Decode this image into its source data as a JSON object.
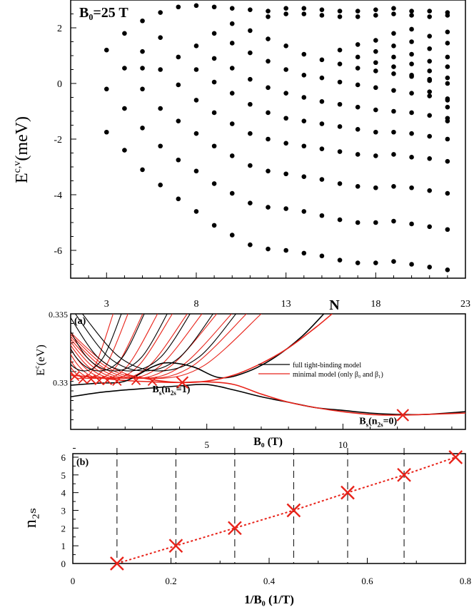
{
  "chart_data": [
    {
      "type": "scatter",
      "panel": "top",
      "title": "B₀=25 T",
      "xlabel": "N",
      "ylabel": "E^{c,v} (meV)",
      "xlim": [
        1,
        23
      ],
      "ylim": [
        -7,
        3
      ],
      "xticks": [
        3,
        8,
        13,
        18,
        23
      ],
      "yticks": [
        -6,
        -4,
        -2,
        0,
        2
      ],
      "series": [
        {
          "name": "band1",
          "x": [
            3,
            4,
            5,
            6,
            7,
            8,
            9,
            10,
            11,
            12,
            13,
            14,
            15,
            16,
            17,
            18,
            19,
            20,
            21,
            22
          ],
          "y": [
            -1.75,
            -2.4,
            -3.1,
            -3.65,
            -4.15,
            -4.6,
            -5.1,
            -5.45,
            -5.8,
            -5.95,
            -6.0,
            -6.1,
            -6.2,
            -6.35,
            -6.45,
            -6.45,
            -6.4,
            -6.5,
            -6.6,
            -6.7
          ]
        },
        {
          "name": "band2",
          "x": [
            4,
            5,
            6,
            7,
            8,
            9,
            10,
            11,
            12,
            13,
            14,
            15,
            16,
            17,
            18,
            19,
            20,
            21,
            22
          ],
          "y": [
            -0.9,
            -1.6,
            -2.25,
            -2.75,
            -3.15,
            -3.6,
            -3.95,
            -4.3,
            -4.45,
            -4.5,
            -4.6,
            -4.75,
            -4.9,
            -5.0,
            -5.0,
            -4.95,
            -5.05,
            -5.15,
            -5.25
          ]
        },
        {
          "name": "band3",
          "x": [
            5,
            6,
            7,
            8,
            9,
            10,
            11,
            12,
            13,
            14,
            15,
            16,
            17,
            18,
            19,
            20,
            21,
            22
          ],
          "y": [
            -0.2,
            -0.9,
            -1.35,
            -1.8,
            -2.25,
            -2.6,
            -2.95,
            -3.15,
            -3.25,
            -3.35,
            -3.45,
            -3.6,
            -3.7,
            -3.75,
            -3.7,
            -3.75,
            -3.85,
            -3.95
          ]
        },
        {
          "name": "band4",
          "x": [
            6,
            7,
            8,
            9,
            10,
            11,
            12,
            13,
            14,
            15,
            16,
            17,
            18,
            19,
            20,
            21,
            22
          ],
          "y": [
            0.5,
            -0.05,
            -0.6,
            -1.05,
            -1.45,
            -1.8,
            -2.0,
            -2.15,
            -2.25,
            -2.35,
            -2.45,
            -2.55,
            -2.6,
            -2.55,
            -2.65,
            -2.7,
            -2.8
          ]
        },
        {
          "name": "band5",
          "x": [
            7,
            8,
            9,
            10,
            11,
            12,
            13,
            14,
            15,
            16,
            17,
            18,
            19,
            20,
            21,
            22
          ],
          "y": [
            0.95,
            0.5,
            0.05,
            -0.35,
            -0.75,
            -1.05,
            -1.25,
            -1.35,
            -1.45,
            -1.55,
            -1.65,
            -1.75,
            -1.75,
            -1.8,
            -1.9,
            -2.0
          ]
        },
        {
          "name": "band6",
          "x": [
            8,
            9,
            10,
            11,
            12,
            13,
            14,
            15,
            16,
            17,
            18,
            19,
            20,
            21,
            22
          ],
          "y": [
            1.35,
            0.9,
            0.55,
            0.15,
            -0.15,
            -0.35,
            -0.5,
            -0.65,
            -0.75,
            -0.85,
            -0.95,
            -1.0,
            -1.05,
            -1.15,
            -1.25
          ]
        },
        {
          "name": "band7",
          "x": [
            9,
            10,
            11,
            12,
            13,
            14,
            15,
            16,
            17,
            18,
            19,
            20,
            21,
            22
          ],
          "y": [
            1.8,
            1.45,
            1.1,
            0.8,
            0.5,
            0.3,
            0.2,
            0.05,
            -0.05,
            -0.15,
            -0.25,
            -0.35,
            -0.45,
            -0.55
          ]
        },
        {
          "name": "band8",
          "x": [
            10,
            11,
            12,
            13,
            14,
            15,
            16,
            17,
            18,
            19,
            20,
            21,
            22
          ],
          "y": [
            2.15,
            1.9,
            1.6,
            1.35,
            1.05,
            0.85,
            0.7,
            0.55,
            0.45,
            0.35,
            0.25,
            0.1,
            0.0
          ]
        },
        {
          "name": "upper1",
          "x": [
            3,
            4,
            5,
            6,
            7,
            8
          ],
          "y": [
            1.2,
            1.8,
            2.25,
            2.55,
            2.75,
            2.8
          ]
        },
        {
          "name": "upper2",
          "x": [
            4,
            5,
            6
          ],
          "y": [
            0.55,
            1.15,
            1.65
          ]
        },
        {
          "name": "upper3",
          "x": [
            3,
            5
          ],
          "y": [
            -0.2,
            0.55
          ]
        },
        {
          "name": "top_row",
          "x": [
            9,
            10,
            11,
            12,
            13,
            14,
            15,
            16,
            17,
            18,
            19,
            20,
            21,
            22
          ],
          "y": [
            2.75,
            2.7,
            2.65,
            2.6,
            2.7,
            2.7,
            2.65,
            2.6,
            2.6,
            2.65,
            2.7,
            2.6,
            2.6,
            2.55
          ]
        },
        {
          "name": "top_row2",
          "x": [
            12,
            13,
            14,
            15,
            16,
            17,
            18,
            19,
            20,
            21,
            22
          ],
          "y": [
            2.4,
            2.5,
            2.5,
            2.45,
            2.4,
            2.4,
            2.45,
            2.5,
            2.45,
            2.4,
            2.45
          ]
        },
        {
          "name": "upper_stack",
          "x": [
            16,
            17,
            18,
            19,
            20,
            21,
            22,
            17,
            18,
            19,
            20,
            21,
            22,
            18,
            19,
            20,
            21,
            22,
            19,
            20,
            21,
            22,
            20,
            21,
            22,
            21,
            22,
            22,
            22
          ],
          "y": [
            1.2,
            1.4,
            1.55,
            1.8,
            1.95,
            1.7,
            1.85,
            0.95,
            1.15,
            1.35,
            1.5,
            1.25,
            1.45,
            0.75,
            0.95,
            1.05,
            0.8,
            0.95,
            0.6,
            0.7,
            0.45,
            0.6,
            0.3,
            0.15,
            0.2,
            -0.3,
            -0.6,
            -0.85,
            -1.35
          ]
        }
      ]
    },
    {
      "type": "line",
      "panel": "a",
      "panel_label": "(a)",
      "xlabel": "B₀ (T)",
      "ylabel": "E^c (eV)",
      "xlim": [
        0,
        14.5
      ],
      "ylim": [
        0.3265,
        0.335
      ],
      "xticks": [
        5,
        10
      ],
      "ytick_labels": [
        "0.33",
        "0.335"
      ],
      "legend": [
        "full tight-binding model",
        "minimal model (only β₀ and β₁)"
      ],
      "legend_colors": [
        "#000000",
        "#e8231a"
      ],
      "annotations": [
        "B_s(n_2s=1)",
        "B_s(n_2s=0)"
      ],
      "crossings": [
        {
          "x": 4.1,
          "y": 0.32995
        },
        {
          "x": 12.2,
          "y": 0.32755
        }
      ],
      "series": [
        {
          "name": "full tight-binding model, n=0",
          "color": "#000000",
          "x": [
            0,
            1,
            2,
            3,
            4,
            5,
            6,
            7,
            8,
            9,
            10,
            11,
            12,
            13,
            14.5
          ],
          "y": [
            0.3289,
            0.3292,
            0.3294,
            0.32955,
            0.3297,
            0.3298,
            0.3294,
            0.3289,
            0.3285,
            0.3281,
            0.3279,
            0.3277,
            0.3276,
            0.3276,
            0.3278
          ]
        },
        {
          "name": "minimal model, n=0",
          "color": "#e8231a",
          "x": [
            0,
            1,
            2,
            3,
            4,
            5,
            6,
            7,
            8,
            9,
            10,
            11,
            12,
            13,
            14.5
          ],
          "y": [
            0.3305,
            0.3303,
            0.3301,
            0.33,
            0.32995,
            0.33,
            0.3298,
            0.3291,
            0.3285,
            0.3281,
            0.3278,
            0.3276,
            0.32755,
            0.3276,
            0.3277
          ]
        },
        {
          "name": "full tight-binding model, n=1",
          "color": "#000000",
          "x": [
            0,
            1,
            2,
            3,
            3.6,
            4.5,
            5.5,
            6.5,
            7.5,
            8.5,
            9.3
          ],
          "y": [
            0.32975,
            0.3299,
            0.33005,
            0.3311,
            0.3314,
            0.3311,
            0.3303,
            0.33075,
            0.3318,
            0.33335,
            0.335
          ]
        },
        {
          "name": "minimal model, n=1",
          "color": "#e8231a",
          "x": [
            2,
            3,
            4,
            5,
            6,
            7,
            8,
            9,
            9.6
          ],
          "y": [
            0.33055,
            0.33015,
            0.32995,
            0.33005,
            0.3305,
            0.33135,
            0.3325,
            0.334,
            0.335
          ]
        }
      ]
    },
    {
      "type": "line",
      "panel": "b",
      "panel_label": "(b)",
      "xlabel": "1/B₀ (1/T)",
      "ylabel": "n₂ₛ",
      "xlim": [
        0,
        0.8
      ],
      "ylim": [
        0,
        6.2
      ],
      "xticks": [
        0,
        0.2,
        0.4,
        0.6,
        0.8
      ],
      "yticks": [
        0,
        1,
        2,
        3,
        4,
        5,
        6
      ],
      "series": [
        {
          "name": "n2s vs 1/B0",
          "color": "#e8231a",
          "x": [
            0.09,
            0.21,
            0.33,
            0.45,
            0.56,
            0.675,
            0.78
          ],
          "y": [
            0,
            1,
            2,
            3,
            4,
            5,
            6
          ]
        }
      ],
      "dashed_vlines": [
        0.09,
        0.21,
        0.33,
        0.45,
        0.56,
        0.675
      ]
    }
  ]
}
